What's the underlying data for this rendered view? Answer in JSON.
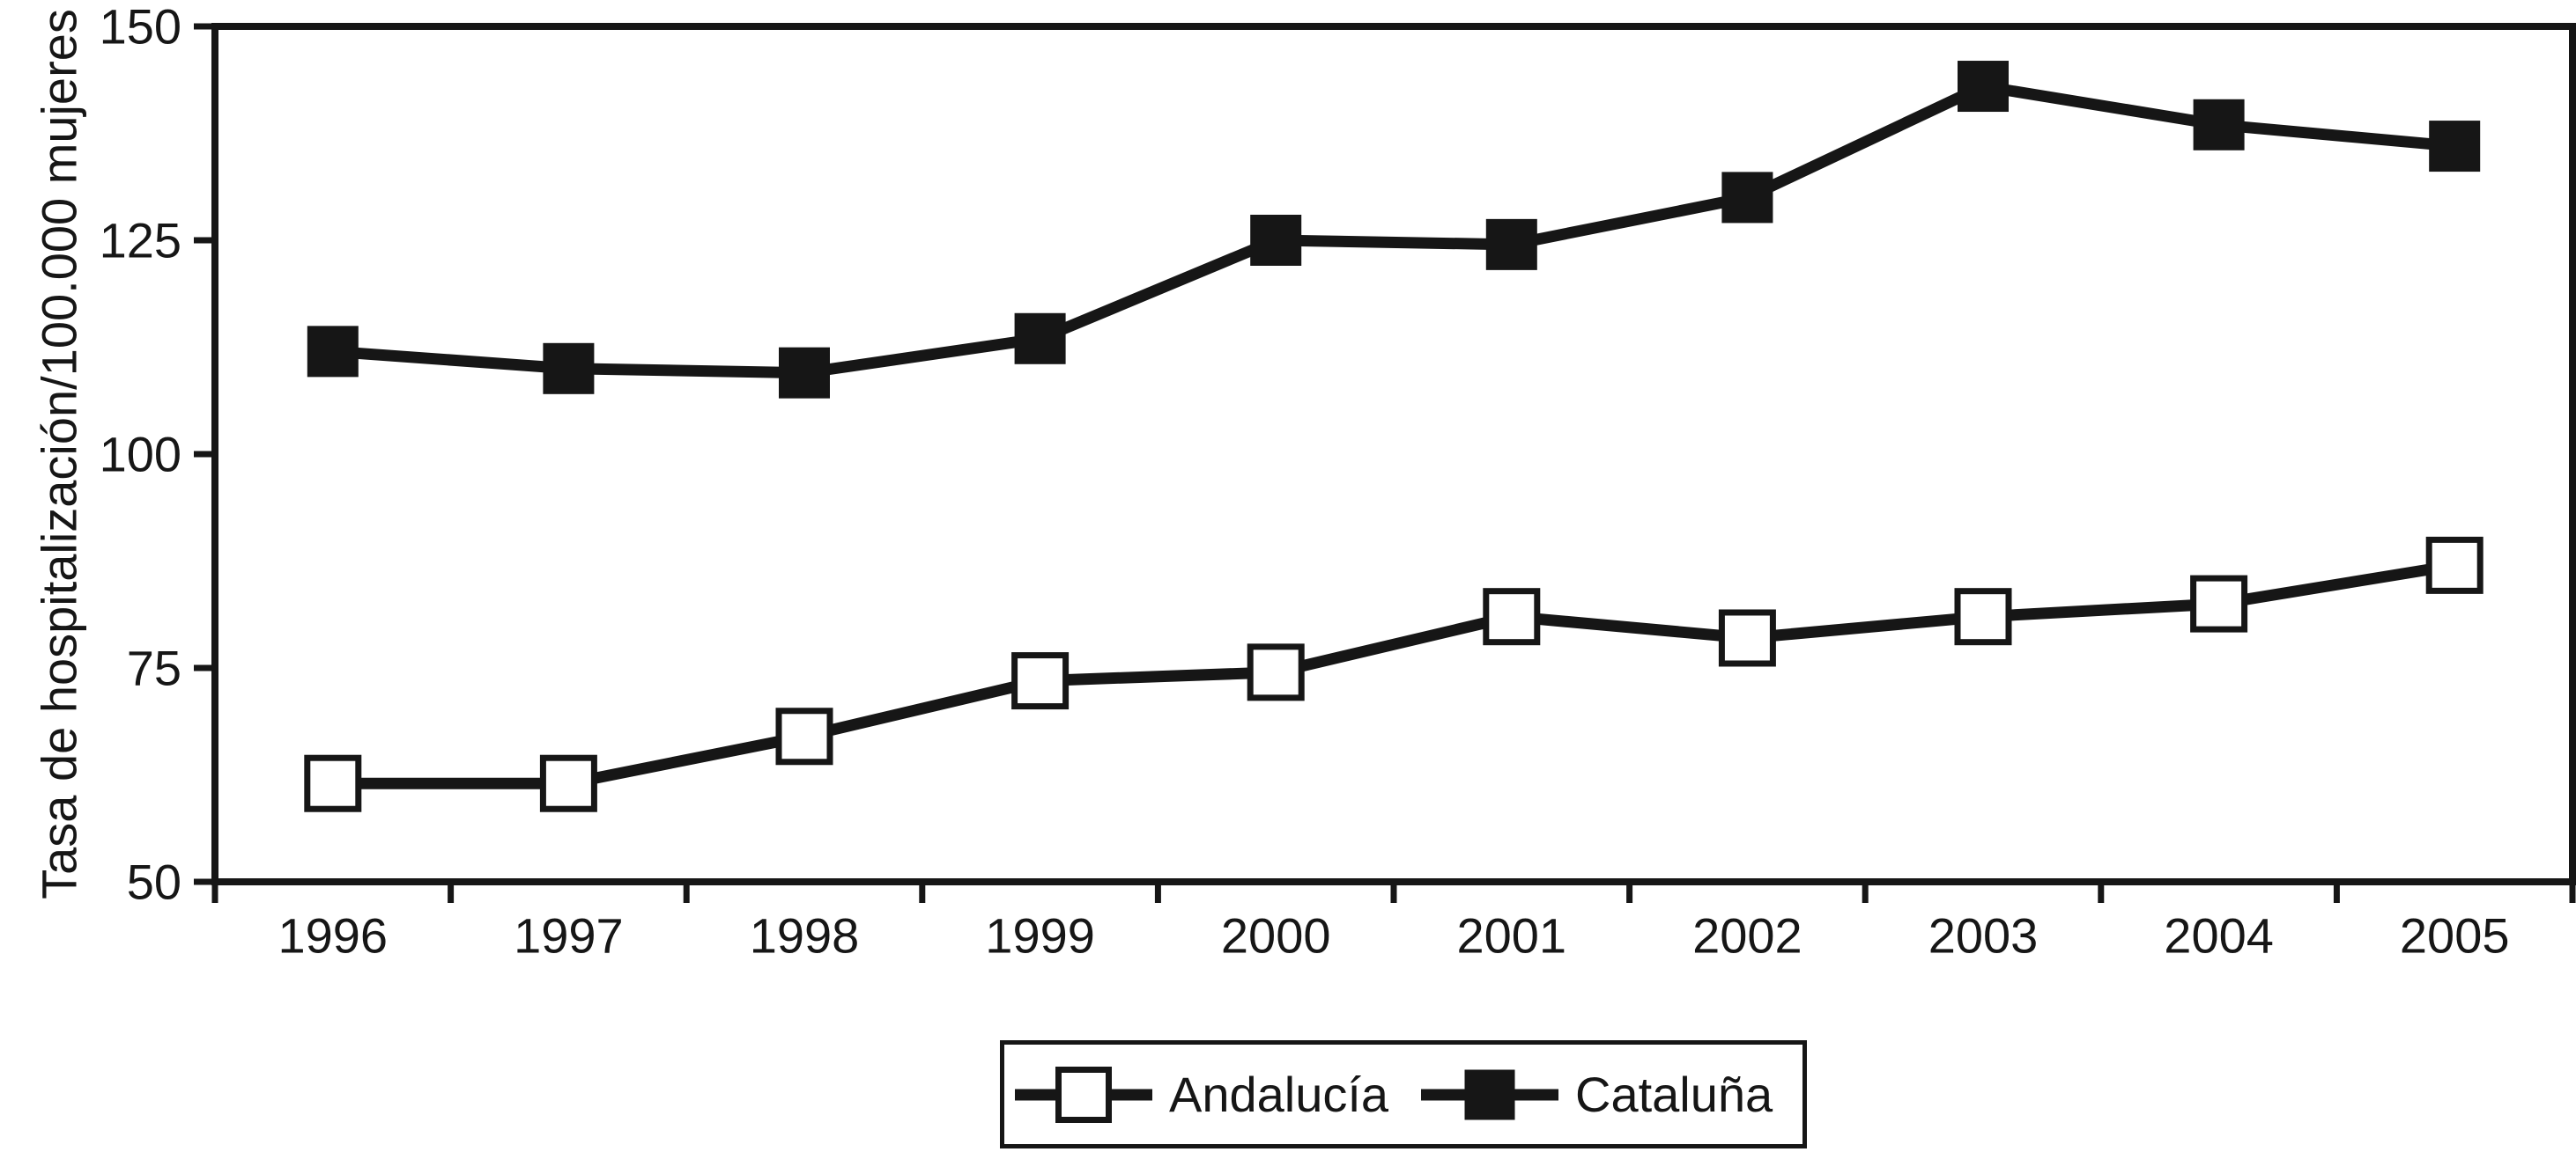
{
  "figure": {
    "background": "#ffffff",
    "ink_color": "#161616"
  },
  "y_axis": {
    "title": "Tasa de hospitalización/100.000 mujeres"
  },
  "legend": {
    "items": [
      {
        "label": "Andalucía",
        "marker": "open-square-marker",
        "marker_fill": "#ffffff"
      },
      {
        "label": "Cataluña",
        "marker": "filled-square-marker",
        "marker_fill": "#161616"
      }
    ]
  },
  "chart_data": {
    "type": "line",
    "title": "",
    "xlabel": "",
    "ylabel": "Tasa de hospitalización/100.000 mujeres",
    "x": [
      "1996",
      "1997",
      "1998",
      "1999",
      "2000",
      "2001",
      "2002",
      "2003",
      "2004",
      "2005"
    ],
    "series": [
      {
        "name": "Andalucía",
        "marker": "open-square",
        "marker_fill": "#ffffff",
        "values": [
          61.5,
          61.5,
          67,
          73.5,
          74.5,
          81,
          78.5,
          81,
          82.5,
          87
        ]
      },
      {
        "name": "Cataluña",
        "marker": "filled-square",
        "marker_fill": "#161616",
        "values": [
          112,
          110,
          109.5,
          113.5,
          125,
          124.5,
          130,
          143,
          138.5,
          136
        ]
      }
    ],
    "ylim": [
      50,
      150
    ],
    "yticks": [
      50,
      75,
      100,
      125,
      150
    ],
    "grid": false,
    "frame": "box",
    "legend_position": "bottom-center"
  }
}
